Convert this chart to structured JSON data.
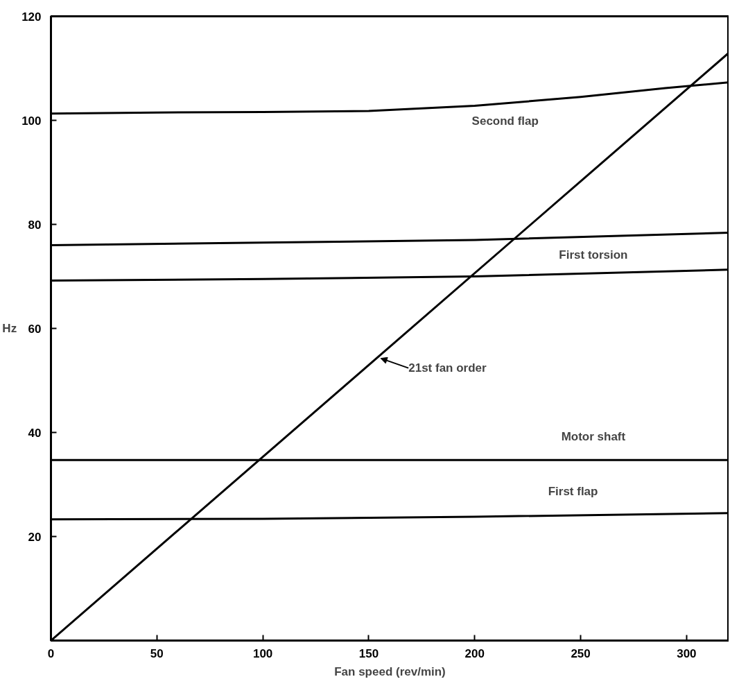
{
  "chart_data": {
    "type": "line",
    "xlabel": "Fan speed (rev/min)",
    "ylabel": "Hz",
    "xlim": [
      0,
      320
    ],
    "ylim": [
      0,
      120
    ],
    "xticks": [
      0,
      50,
      100,
      150,
      200,
      250,
      300
    ],
    "yticks": [
      20,
      40,
      60,
      80,
      100,
      120
    ],
    "grid": false,
    "legend": false,
    "marker": "none",
    "line_style": "solid",
    "series": [
      {
        "name": "Second flap",
        "color": "#000000",
        "x": [
          0,
          50,
          100,
          150,
          200,
          250,
          290,
          320
        ],
        "values": [
          101.3,
          101.5,
          101.6,
          101.8,
          102.8,
          104.5,
          106.2,
          107.3
        ]
      },
      {
        "name": "First torsion",
        "color": "#000000",
        "x": [
          0,
          100,
          200,
          320
        ],
        "values": [
          76,
          76.5,
          77,
          78.4
        ]
      },
      {
        "color": "#000000",
        "x": [
          0,
          100,
          200,
          320
        ],
        "values": [
          69.2,
          69.5,
          70,
          71.3
        ]
      },
      {
        "name": "Motor shaft",
        "color": "#000000",
        "x": [
          0,
          320
        ],
        "values": [
          34.7,
          34.7
        ]
      },
      {
        "name": "First flap",
        "color": "#000000",
        "x": [
          0,
          100,
          200,
          320
        ],
        "values": [
          23.3,
          23.4,
          23.8,
          24.5
        ]
      },
      {
        "color": "#000000",
        "x": [
          0,
          320
        ],
        "values": [
          0,
          113
        ]
      }
    ],
    "annotations": [
      {
        "text": "21st fan order",
        "x": 155,
        "y": 54.25
      }
    ]
  }
}
